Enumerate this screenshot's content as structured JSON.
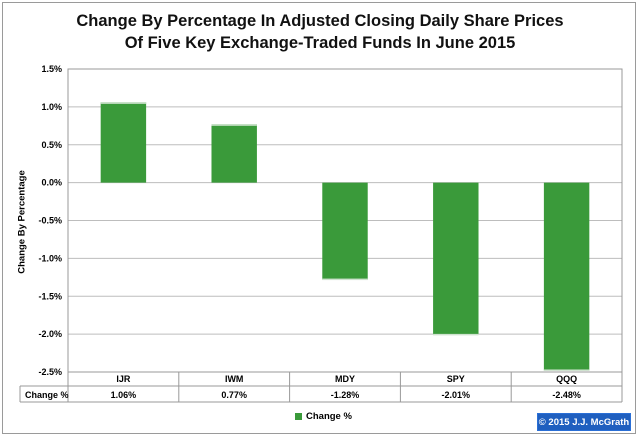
{
  "chart_data": {
    "type": "bar",
    "title_lines": [
      "Change By Percentage In Adjusted Closing Daily Share Prices",
      "Of Five Key Exchange-Traded Funds In June 2015"
    ],
    "ylabel": "Change By Percentage",
    "xlabel": "",
    "categories": [
      "IJR",
      "IWM",
      "MDY",
      "SPY",
      "QQQ"
    ],
    "series": [
      {
        "name": "Change %",
        "values": [
          1.06,
          0.77,
          -1.28,
          -2.01,
          -2.48
        ]
      }
    ],
    "data_labels": [
      "1.06%",
      "0.77%",
      "-1.28%",
      "-2.01%",
      "-2.48%"
    ],
    "ylim": [
      -2.5,
      1.5
    ],
    "yticks": [
      1.5,
      1.0,
      0.5,
      0.0,
      -0.5,
      -1.0,
      -1.5,
      -2.0,
      -2.5
    ],
    "ytick_labels": [
      "1.5%",
      "1.0%",
      "0.5%",
      "0.0%",
      "-0.5%",
      "-1.0%",
      "-1.5%",
      "-2.0%",
      "-2.5%"
    ],
    "grid": true,
    "legend_position": "bottom",
    "data_table": true,
    "colors": {
      "bar": "#3a9a3a",
      "grid": "#bdbdbd"
    }
  },
  "copyright": "© 2015 J.J. McGrath"
}
